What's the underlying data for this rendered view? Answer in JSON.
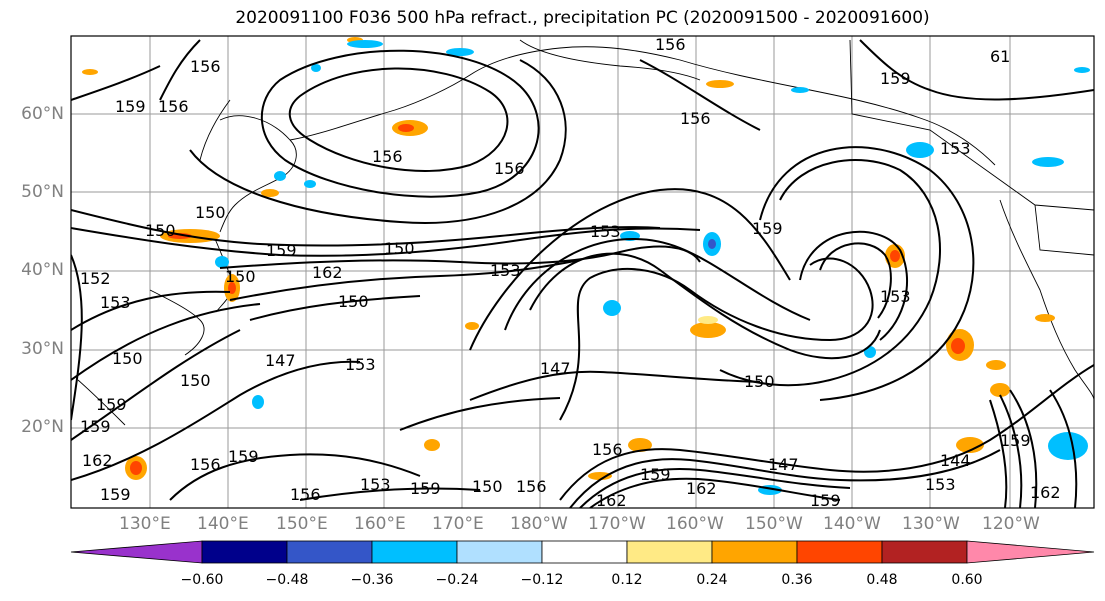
{
  "title": "2020091100 F036 500 hPa refract., precipitation PC (2020091500 - 2020091600)",
  "lat_labels": [
    "60°N",
    "50°N",
    "40°N",
    "30°N",
    "20°N"
  ],
  "lon_labels": [
    "130°E",
    "140°E",
    "150°E",
    "160°E",
    "170°E",
    "180°W",
    "170°W",
    "160°W",
    "150°W",
    "140°W",
    "130°W",
    "120°W"
  ],
  "contour_labels": [
    "156",
    "159",
    "156",
    "156",
    "156",
    "156",
    "159",
    "61",
    "153",
    "156",
    "150",
    "159",
    "150",
    "153",
    "150",
    "159",
    "162",
    "150",
    "153",
    "153",
    "152",
    "147",
    "153",
    "150",
    "147",
    "150",
    "153",
    "150",
    "144",
    "159",
    "162",
    "159",
    "162",
    "147",
    "159",
    "156",
    "159",
    "153",
    "159",
    "150",
    "156",
    "159",
    "150",
    "156",
    "156",
    "162",
    "153",
    "159",
    "162",
    "159"
  ],
  "colorbar": {
    "colors": [
      "#9932cc",
      "#00008b",
      "#3456c8",
      "#00bfff",
      "#b0e0ff",
      "#ffffff",
      "#ffea85",
      "#ffa500",
      "#ff4500",
      "#b22222",
      "#ff88aa"
    ],
    "ticks": [
      "−0.60",
      "−0.48",
      "−0.36",
      "−0.24",
      "−0.12",
      "0.12",
      "0.24",
      "0.36",
      "0.48",
      "0.60"
    ]
  }
}
